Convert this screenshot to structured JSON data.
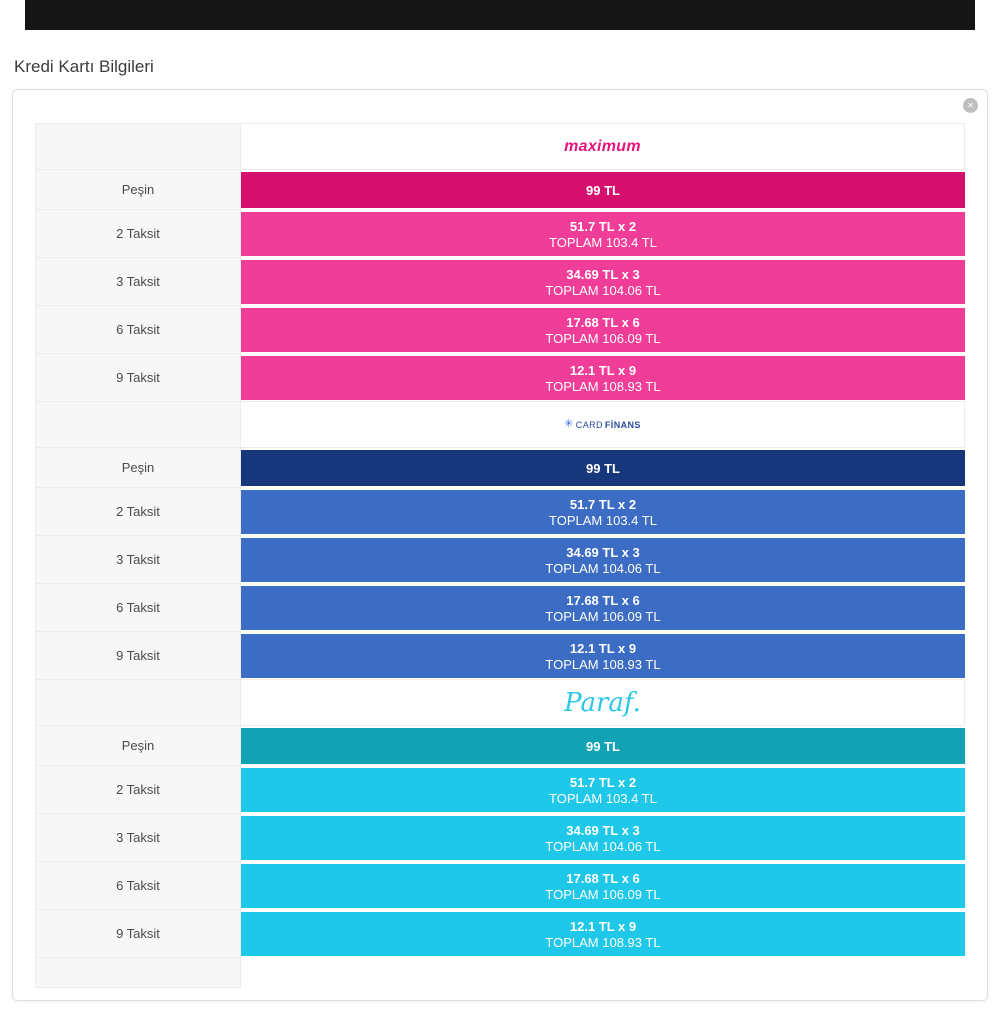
{
  "page": {
    "title": "Kredi Kartı Bilgileri"
  },
  "close_icon": "✕",
  "installments": {
    "banks": [
      {
        "id": "maximum",
        "logo_text": "maximum",
        "logo_color": "#e8127c",
        "pesin_color": "#d50f6e",
        "taksit_color": "#f03e98",
        "rows": [
          {
            "label": "Peşin",
            "amount": "99 TL",
            "total": ""
          },
          {
            "label": "2 Taksit",
            "amount": "51.7 TL x 2",
            "total": "TOPLAM 103.4 TL"
          },
          {
            "label": "3 Taksit",
            "amount": "34.69 TL x 3",
            "total": "TOPLAM 104.06 TL"
          },
          {
            "label": "6 Taksit",
            "amount": "17.68 TL x 6",
            "total": "TOPLAM 106.09 TL"
          },
          {
            "label": "9 Taksit",
            "amount": "12.1 TL x 9",
            "total": "TOPLAM 108.93 TL"
          }
        ]
      },
      {
        "id": "cardfinans",
        "logo_icon": "✳",
        "logo_text_prefix": "CARD",
        "logo_text_suffix": "FİNANS",
        "logo_color": "#2b4d9e",
        "pesin_color": "#17377d",
        "taksit_color": "#3d6cc4",
        "rows": [
          {
            "label": "Peşin",
            "amount": "99 TL",
            "total": ""
          },
          {
            "label": "2 Taksit",
            "amount": "51.7 TL x 2",
            "total": "TOPLAM 103.4 TL"
          },
          {
            "label": "3 Taksit",
            "amount": "34.69 TL x 3",
            "total": "TOPLAM 104.06 TL"
          },
          {
            "label": "6 Taksit",
            "amount": "17.68 TL x 6",
            "total": "TOPLAM 106.09 TL"
          },
          {
            "label": "9 Taksit",
            "amount": "12.1 TL x 9",
            "total": "TOPLAM 108.93 TL"
          }
        ]
      },
      {
        "id": "paraf",
        "logo_text": "Paraf.",
        "logo_color": "#2bc7e6",
        "pesin_color": "#12a2b3",
        "taksit_color": "#1fc8e8",
        "rows": [
          {
            "label": "Peşin",
            "amount": "99 TL",
            "total": ""
          },
          {
            "label": "2 Taksit",
            "amount": "51.7 TL x 2",
            "total": "TOPLAM 103.4 TL"
          },
          {
            "label": "3 Taksit",
            "amount": "34.69 TL x 3",
            "total": "TOPLAM 104.06 TL"
          },
          {
            "label": "6 Taksit",
            "amount": "17.68 TL x 6",
            "total": "TOPLAM 106.09 TL"
          },
          {
            "label": "9 Taksit",
            "amount": "12.1 TL x 9",
            "total": "TOPLAM 108.93 TL"
          }
        ]
      }
    ]
  }
}
